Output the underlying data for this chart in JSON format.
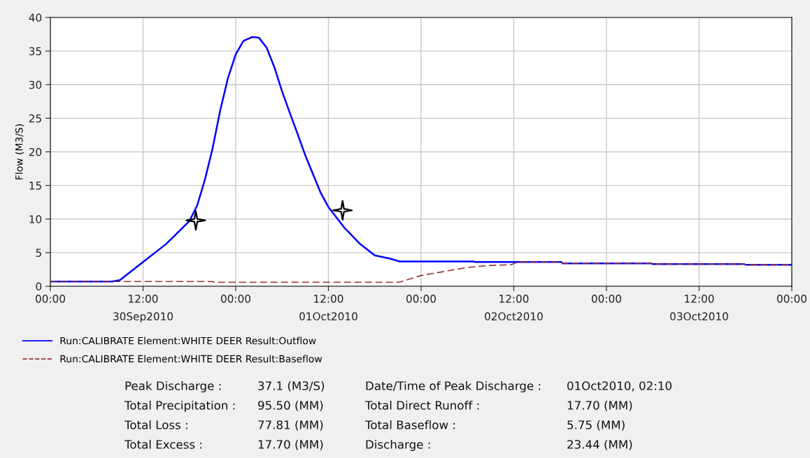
{
  "chart_data": {
    "type": "line",
    "ylabel": "Flow (M3/S)",
    "xlim": [
      "2010-09-30T00:00",
      "2010-10-04T00:00"
    ],
    "xticks": [
      {
        "value": "2010-09-30T00:00",
        "label": "00:00"
      },
      {
        "value": "2010-09-30T12:00",
        "label": "12:00\n30Sep2010"
      },
      {
        "value": "2010-10-01T00:00",
        "label": "00:00"
      },
      {
        "value": "2010-10-01T12:00",
        "label": "12:00\n01Oct2010"
      },
      {
        "value": "2010-10-02T00:00",
        "label": "00:00"
      },
      {
        "value": "2010-10-02T12:00",
        "label": "12:00\n02Oct2010"
      },
      {
        "value": "2010-10-03T00:00",
        "label": "00:00"
      },
      {
        "value": "2010-10-03T12:00",
        "label": "12:00\n03Oct2010"
      },
      {
        "value": "2010-10-04T00:00",
        "label": "00:00"
      }
    ],
    "ylim": [
      0,
      40
    ],
    "yticks": [
      0,
      5,
      10,
      15,
      20,
      25,
      30,
      35,
      40
    ],
    "grid": true,
    "legend": "bottom",
    "series": [
      {
        "name": "Run:CALIBRATE Element:WHITE DEER Result:Outflow",
        "color": "#0000ff",
        "line_style": "solid",
        "x": [
          "2010-09-30T00:00",
          "2010-09-30T08:00",
          "2010-09-30T09:00",
          "2010-09-30T12:00",
          "2010-09-30T15:00",
          "2010-09-30T18:00",
          "2010-09-30T19:00",
          "2010-09-30T20:00",
          "2010-09-30T21:00",
          "2010-09-30T22:00",
          "2010-09-30T23:00",
          "2010-10-01T00:00",
          "2010-10-01T01:00",
          "2010-10-01T02:10",
          "2010-10-01T03:00",
          "2010-10-01T04:00",
          "2010-10-01T05:00",
          "2010-10-01T06:00",
          "2010-10-01T07:00",
          "2010-10-01T08:00",
          "2010-10-01T09:00",
          "2010-10-01T10:00",
          "2010-10-01T11:00",
          "2010-10-01T12:00",
          "2010-10-01T14:00",
          "2010-10-01T16:00",
          "2010-10-01T18:00",
          "2010-10-01T20:00",
          "2010-10-01T21:10",
          "2010-10-02T06:50",
          "2010-10-02T07:00",
          "2010-10-02T18:10",
          "2010-10-02T18:20",
          "2010-10-03T05:50",
          "2010-10-03T06:00",
          "2010-10-03T17:50",
          "2010-10-03T18:00",
          "2010-10-04T00:00"
        ],
        "values": [
          0.7,
          0.7,
          0.9,
          3.6,
          6.3,
          9.7,
          12.0,
          15.8,
          20.5,
          26.2,
          31.0,
          34.5,
          36.5,
          37.1,
          37.0,
          35.5,
          32.6,
          29.0,
          25.8,
          22.7,
          19.5,
          16.7,
          13.9,
          11.8,
          8.8,
          6.4,
          4.6,
          4.1,
          3.7,
          3.7,
          3.6,
          3.6,
          3.4,
          3.4,
          3.3,
          3.3,
          3.2,
          3.2
        ]
      },
      {
        "name": "Run:CALIBRATE Element:WHITE DEER Result:Baseflow",
        "color": "#993333",
        "line_style": "dashed",
        "x": [
          "2010-09-30T00:00",
          "2010-09-30T21:00",
          "2010-09-30T21:10",
          "2010-10-01T21:10",
          "2010-10-02T00:00",
          "2010-10-02T03:00",
          "2010-10-02T06:00",
          "2010-10-02T09:00",
          "2010-10-02T11:40",
          "2010-10-02T12:30",
          "2010-10-02T18:10",
          "2010-10-02T18:20",
          "2010-10-03T05:50",
          "2010-10-03T06:00",
          "2010-10-03T17:50",
          "2010-10-03T18:00",
          "2010-10-04T00:00"
        ],
        "values": [
          0.7,
          0.7,
          0.6,
          0.6,
          1.6,
          2.2,
          2.8,
          3.1,
          3.2,
          3.6,
          3.6,
          3.4,
          3.4,
          3.3,
          3.3,
          3.2,
          3.2
        ]
      },
      {
        "type": "scatter",
        "marker": "star",
        "color": "#000000",
        "x": [
          "2010-09-30T18:50",
          "2010-10-01T13:50"
        ],
        "values": [
          9.8,
          11.3
        ]
      }
    ],
    "annotations": [
      "Peak Discharge :",
      "37.1 (M3/S)",
      "Date/Time of Peak Discharge :",
      "01Oct2010, 02:10",
      "Total Precipitation :",
      "95.50 (MM)",
      "Total Direct Runoff :",
      "17.70 (MM)",
      "Total Loss :",
      "77.81 (MM)",
      "Total Baseflow :",
      "5.75 (MM)",
      "Total Excess :",
      "17.70 (MM)",
      "Discharge :",
      "23.44 (MM)"
    ]
  }
}
